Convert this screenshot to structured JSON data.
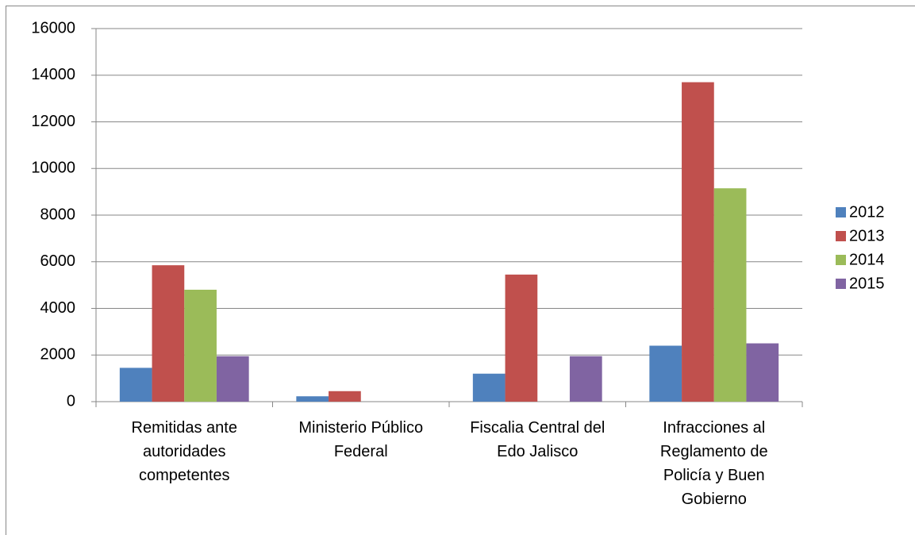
{
  "chart_data": {
    "type": "bar",
    "categories": [
      "Remitidas ante autoridades competentes",
      "Ministerio Público Federal",
      "Fiscalia Central del Edo Jalisco",
      "Infracciones al Reglamento de Policía y Buen Gobierno"
    ],
    "series": [
      {
        "name": "2012",
        "color": "#4f81bd",
        "values": [
          1450,
          230,
          1200,
          2400
        ]
      },
      {
        "name": "2013",
        "color": "#c0504d",
        "values": [
          5850,
          450,
          5450,
          13700
        ]
      },
      {
        "name": "2014",
        "color": "#9bbb59",
        "values": [
          4800,
          null,
          null,
          9150
        ]
      },
      {
        "name": "2015",
        "color": "#8064a2",
        "values": [
          1950,
          null,
          1950,
          2500
        ]
      }
    ],
    "ylim": [
      0,
      16000
    ],
    "yticks": [
      0,
      2000,
      4000,
      6000,
      8000,
      10000,
      12000,
      14000,
      16000
    ],
    "grid": true,
    "legend": "right"
  }
}
